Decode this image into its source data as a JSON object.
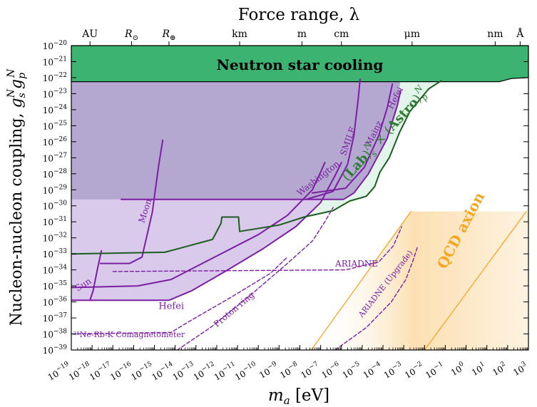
{
  "chart_data": {
    "type": "line",
    "title_top": "Force range, λ",
    "xlabel_base": "m",
    "xlabel_sub": "a",
    "xlabel_unit": " [eV]",
    "ylabel_main": "Nucleon-nucleon coupling, ",
    "ylabel_sym": "g",
    "ylabel_s_sub": "s",
    "ylabel_p_sub": "p",
    "ylabel_N": "N",
    "x_log_range": [
      -19,
      3
    ],
    "y_log_range": [
      -39,
      -20
    ],
    "x_ticks": [
      -19,
      -18,
      -17,
      -16,
      -15,
      -14,
      -13,
      -12,
      -11,
      -10,
      -9,
      -8,
      -7,
      -6,
      -5,
      -4,
      -3,
      -2,
      -1,
      0,
      1,
      2,
      3
    ],
    "y_ticks": [
      -20,
      -21,
      -22,
      -23,
      -24,
      -25,
      -26,
      -27,
      -28,
      -29,
      -30,
      -31,
      -32,
      -33,
      -34,
      -35,
      -36,
      -37,
      -38,
      -39
    ],
    "tick_base": "10",
    "top_axis": [
      {
        "label": "AU",
        "log_ma": -18.1
      },
      {
        "label": "R",
        "sub": "⊙",
        "log_ma": -16.1
      },
      {
        "label": "R",
        "sub": "⊕",
        "log_ma": -14.3
      },
      {
        "label": "km",
        "log_ma": -10.9
      },
      {
        "label": "m",
        "log_ma": -7.9
      },
      {
        "label": "cm",
        "log_ma": -6.0
      },
      {
        "label": "μm",
        "log_ma": -2.6
      },
      {
        "label": "nm",
        "log_ma": 1.4
      },
      {
        "label": "Å",
        "log_ma": 2.6
      }
    ],
    "regions": {
      "neutron_star": {
        "label": "Neutron star cooling",
        "color": "#3cb371"
      },
      "lab_excluded": {
        "color": "#b4a7d0"
      },
      "lab_astro": {
        "label_lab": "Lab",
        "label_astro": "Astro",
        "sub_s": "s",
        "sub_p": "p",
        "sup": "N",
        "times": "×",
        "color": "#2e7d32"
      },
      "qcd_axion": {
        "label": "QCD axion",
        "color": "#f5a623"
      }
    },
    "series": [
      {
        "name": "Sun",
        "color": "#7b1fa2",
        "style": "solid",
        "points": [
          [
            -18.1,
            -35.9
          ],
          [
            -17.95,
            -35.3
          ],
          [
            -17.75,
            -34.0
          ],
          [
            -17.55,
            -32.8
          ]
        ]
      },
      {
        "name": "Moon",
        "color": "#7b1fa2",
        "style": "solid",
        "points": [
          [
            -17.6,
            -33.6
          ],
          [
            -16.2,
            -33.6
          ],
          [
            -15.6,
            -33.2
          ],
          [
            -15.1,
            -30.4
          ],
          [
            -14.8,
            -27.5
          ],
          [
            -14.6,
            -25.9
          ]
        ]
      },
      {
        "name": "Washington",
        "color": "#7b1fa2",
        "style": "solid",
        "points": [
          [
            -19,
            -35.1
          ],
          [
            -15.8,
            -35.0
          ],
          [
            -14.2,
            -34.6
          ],
          [
            -12.4,
            -33.4
          ],
          [
            -10.0,
            -31.8
          ],
          [
            -8.6,
            -30.6
          ],
          [
            -7.4,
            -29.0
          ],
          [
            -7.0,
            -27.9
          ],
          [
            -6.8,
            -27.3
          ]
        ]
      },
      {
        "name": "Hefei (lower)",
        "color": "#7b1fa2",
        "style": "solid",
        "points": [
          [
            -19,
            -35.9
          ],
          [
            -14.3,
            -35.9
          ],
          [
            -13.2,
            -35.3
          ],
          [
            -11.6,
            -34.1
          ],
          [
            -9.8,
            -32.7
          ],
          [
            -8.2,
            -31.3
          ],
          [
            -7.0,
            -29.8
          ],
          [
            -6.3,
            -28.1
          ],
          [
            -6.0,
            -27.3
          ]
        ]
      },
      {
        "name": "Hefei (upper)",
        "color": "#7b1fa2",
        "style": "solid",
        "points": [
          [
            -16.6,
            -29.6
          ],
          [
            -5.9,
            -29.6
          ],
          [
            -5.4,
            -29.2
          ],
          [
            -4.7,
            -28.0
          ],
          [
            -3.8,
            -25.8
          ],
          [
            -3.3,
            -23.7
          ],
          [
            -3.15,
            -22.8
          ]
        ]
      },
      {
        "name": "SMILE",
        "color": "#7b1fa2",
        "style": "solid",
        "points": [
          [
            -7.7,
            -29.6
          ],
          [
            -6.4,
            -29.1
          ],
          [
            -5.7,
            -27.4
          ],
          [
            -5.4,
            -25.6
          ],
          [
            -5.2,
            -23.4
          ],
          [
            -5.1,
            -22.1
          ]
        ]
      },
      {
        "name": "Mainz",
        "color": "#7b1fa2",
        "style": "solid",
        "points": [
          [
            -7.4,
            -29.2
          ],
          [
            -5.8,
            -28.9
          ],
          [
            -4.9,
            -27.6
          ],
          [
            -4.2,
            -25.6
          ],
          [
            -3.8,
            -23.9
          ],
          [
            -3.55,
            -22.4
          ]
        ]
      },
      {
        "name": "Lab x Astro boundary",
        "color": "#1b5e20",
        "style": "solid",
        "points": [
          [
            -19,
            -33.0
          ],
          [
            -14.5,
            -32.9
          ],
          [
            -12.2,
            -32.1
          ],
          [
            -11.8,
            -31.1
          ],
          [
            -11.75,
            -30.7
          ],
          [
            -10.95,
            -30.7
          ],
          [
            -10.9,
            -31.6
          ],
          [
            -9.0,
            -31.2
          ],
          [
            -7.8,
            -30.7
          ],
          [
            -6.4,
            -30.3
          ],
          [
            -5.6,
            -29.7
          ],
          [
            -4.8,
            -29.4
          ],
          [
            -4.4,
            -28.8
          ],
          [
            -4.15,
            -27.9
          ],
          [
            -3.7,
            -27.0
          ],
          [
            -3.2,
            -25.4
          ],
          [
            -2.7,
            -24.1
          ],
          [
            -1.8,
            -22.7
          ],
          [
            -1.2,
            -22.2
          ]
        ]
      },
      {
        "name": "Proton ring",
        "color": "#7b1fa2",
        "style": "dashed",
        "points": [
          [
            -13.9,
            -39.0
          ],
          [
            -12.3,
            -37.6
          ],
          [
            -10.4,
            -35.6
          ],
          [
            -8.6,
            -33.6
          ],
          [
            -7.4,
            -32.2
          ],
          [
            -6.8,
            -31.0
          ],
          [
            -6.4,
            -30.1
          ]
        ]
      },
      {
        "name": "21Ne-Rb-K Comagnetometer",
        "color": "#7b1fa2",
        "style": "dashed",
        "points": [
          [
            -19,
            -38.0
          ],
          [
            -14.2,
            -37.9
          ],
          [
            -13.3,
            -37.2
          ],
          [
            -11.3,
            -35.7
          ],
          [
            -9.4,
            -34.2
          ],
          [
            -8.6,
            -33.2
          ]
        ]
      },
      {
        "name": "ARIADNE",
        "color": "#7b1fa2",
        "style": "dashed",
        "points": [
          [
            -17.0,
            -34.1
          ],
          [
            -5.8,
            -34.0
          ],
          [
            -4.2,
            -33.5
          ],
          [
            -3.5,
            -32.5
          ],
          [
            -3.1,
            -31.3
          ]
        ]
      },
      {
        "name": "ARIADNE (Upgrade)",
        "color": "#7b1fa2",
        "style": "dashed",
        "points": [
          [
            -6.3,
            -39.0
          ],
          [
            -4.8,
            -37.6
          ],
          [
            -3.6,
            -36.0
          ],
          [
            -2.9,
            -34.6
          ],
          [
            -2.55,
            -33.4
          ],
          [
            -2.35,
            -32.6
          ]
        ]
      },
      {
        "name": "QCD axion (left edge)",
        "color": "#f5a623",
        "style": "solid",
        "points": [
          [
            -7.45,
            -39.0
          ],
          [
            -2.65,
            -30.35
          ]
        ]
      },
      {
        "name": "QCD axion (right edge)",
        "color": "#f5a623",
        "style": "solid",
        "points": [
          [
            -2.0,
            -39.0
          ],
          [
            2.9,
            -30.35
          ]
        ]
      }
    ],
    "annotations": [
      {
        "text": "Sun",
        "log_ma": -18.7,
        "log_g": -35.35,
        "rot": -32,
        "size": 12
      },
      {
        "text": "Moon",
        "log_ma": -15.5,
        "log_g": -31.1,
        "rot": -72,
        "size": 12
      },
      {
        "text": "Washington",
        "log_ma": -8.0,
        "log_g": -29.4,
        "rot": -38,
        "size": 12
      },
      {
        "text": "SMILE",
        "log_ma": -5.8,
        "log_g": -26.9,
        "rot": -70,
        "size": 12
      },
      {
        "text": "Mainz",
        "log_ma": -4.6,
        "log_g": -26.3,
        "rot": -64,
        "size": 12
      },
      {
        "text": "Hefei",
        "log_ma": -3.55,
        "log_g": -24.0,
        "rot": -62,
        "size": 12
      },
      {
        "text": "Hefei",
        "log_ma": -14.8,
        "log_g": -36.45,
        "rot": 0,
        "size": 13
      },
      {
        "text": "ARIADNE",
        "log_ma": -6.3,
        "log_g": -33.8,
        "rot": 0,
        "size": 12
      },
      {
        "text": "ARIADNE (Upgrade)",
        "log_ma": -5.0,
        "log_g": -37.0,
        "rot": -52,
        "size": 11
      },
      {
        "text": "Proton ring",
        "log_ma": -12.0,
        "log_g": -37.6,
        "rot": -40,
        "size": 12
      },
      {
        "text": "²¹Ne-Rb-K Comagnetometer",
        "log_ma": -18.9,
        "log_g": -38.2,
        "rot": 0,
        "size": 11
      }
    ]
  }
}
